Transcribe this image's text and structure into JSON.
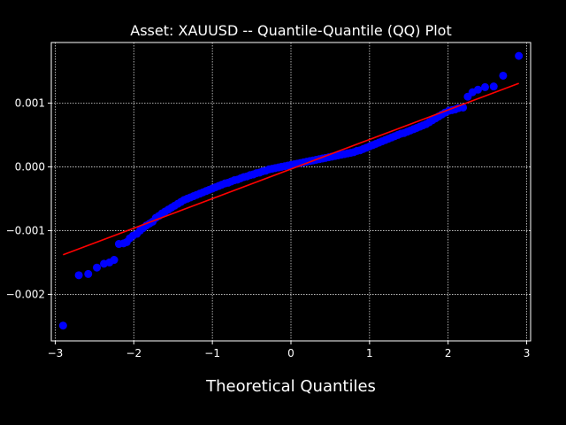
{
  "chart_data": {
    "type": "scatter",
    "title": "Asset: XAUUSD -- Quantile-Quantile (QQ) Plot",
    "xlabel": "Theoretical Quantiles",
    "ylabel": "",
    "xlim": [
      -3.05,
      3.05
    ],
    "ylim": [
      -0.00273,
      0.00195
    ],
    "xticks": [
      -3,
      -2,
      -1,
      0,
      1,
      2,
      3
    ],
    "xtick_labels": [
      "−3",
      "−2",
      "−1",
      "0",
      "1",
      "2",
      "3"
    ],
    "yticks": [
      -0.002,
      -0.001,
      0.0,
      0.001
    ],
    "ytick_labels": [
      "−0.002",
      "−0.001",
      "0.000",
      "0.001"
    ],
    "grid": true,
    "colors": {
      "background": "#000000",
      "points": "#0000ff",
      "line": "#ff0000",
      "text": "#ffffff"
    },
    "series": [
      {
        "type": "scatter",
        "color": "#0000ff",
        "x": [
          -2.9,
          -2.7,
          -2.58,
          -2.47,
          -2.38,
          -2.31,
          -2.25,
          -2.19,
          -2.13,
          -2.09,
          -2.05,
          -2.01,
          -1.96,
          -1.92,
          -1.88,
          -1.84,
          -1.8,
          -1.76,
          -1.72,
          -1.68,
          -1.64,
          -1.6,
          -1.56,
          -1.52,
          -1.48,
          -1.44,
          -1.4,
          -1.36,
          -1.32,
          -1.28,
          -1.24,
          -1.2,
          -1.16,
          -1.12,
          -1.08,
          -1.04,
          -1.0,
          -0.96,
          -0.92,
          -0.88,
          -0.84,
          -0.8,
          -0.76,
          -0.72,
          -0.68,
          -0.64,
          -0.6,
          -0.56,
          -0.52,
          -0.48,
          -0.44,
          -0.4,
          -0.36,
          -0.32,
          -0.28,
          -0.24,
          -0.2,
          -0.16,
          -0.12,
          -0.08,
          -0.04,
          0.0,
          0.04,
          0.08,
          0.12,
          0.16,
          0.2,
          0.24,
          0.28,
          0.32,
          0.36,
          0.4,
          0.44,
          0.48,
          0.52,
          0.56,
          0.6,
          0.64,
          0.68,
          0.72,
          0.76,
          0.8,
          0.84,
          0.88,
          0.92,
          0.96,
          1.0,
          1.04,
          1.08,
          1.12,
          1.16,
          1.2,
          1.24,
          1.28,
          1.32,
          1.36,
          1.4,
          1.44,
          1.48,
          1.52,
          1.56,
          1.6,
          1.64,
          1.68,
          1.72,
          1.76,
          1.8,
          1.84,
          1.88,
          1.92,
          1.96,
          2.01,
          2.05,
          2.09,
          2.13,
          2.19,
          2.25,
          2.31,
          2.38,
          2.47,
          2.58,
          2.7,
          2.9
        ],
        "y": [
          -0.00249,
          -0.0017,
          -0.00168,
          -0.00158,
          -0.00152,
          -0.0015,
          -0.00146,
          -0.00121,
          -0.0012,
          -0.00118,
          -0.00112,
          -0.00108,
          -0.00105,
          -0.001,
          -0.00096,
          -0.00092,
          -0.00089,
          -0.00086,
          -0.0008,
          -0.00077,
          -0.00073,
          -0.0007,
          -0.00067,
          -0.00064,
          -0.00061,
          -0.00058,
          -0.00055,
          -0.00052,
          -0.0005,
          -0.00048,
          -0.00046,
          -0.00044,
          -0.00042,
          -0.0004,
          -0.00038,
          -0.00036,
          -0.00034,
          -0.00032,
          -0.0003,
          -0.00028,
          -0.00026,
          -0.00025,
          -0.00023,
          -0.00021,
          -0.0002,
          -0.00018,
          -0.00016,
          -0.00015,
          -0.00013,
          -0.00012,
          -0.0001,
          -9e-05,
          -7e-05,
          -6e-05,
          -4e-05,
          -3e-05,
          -2e-05,
          -1e-05,
          0.0,
          1e-05,
          2e-05,
          3e-05,
          4e-05,
          5e-05,
          6e-05,
          7e-05,
          8e-05,
          9e-05,
          0.0001,
          0.00011,
          0.00012,
          0.00013,
          0.00014,
          0.00015,
          0.00016,
          0.00017,
          0.00018,
          0.00019,
          0.0002,
          0.00021,
          0.00022,
          0.00023,
          0.00025,
          0.00026,
          0.00028,
          0.0003,
          0.00032,
          0.00034,
          0.00036,
          0.00038,
          0.0004,
          0.00042,
          0.00044,
          0.00046,
          0.00048,
          0.0005,
          0.00052,
          0.00053,
          0.00055,
          0.00057,
          0.00059,
          0.00061,
          0.00063,
          0.00065,
          0.00067,
          0.0007,
          0.00073,
          0.00076,
          0.00079,
          0.00082,
          0.00085,
          0.00088,
          0.00089,
          0.0009,
          0.00092,
          0.00093,
          0.0011,
          0.00117,
          0.00121,
          0.00125,
          0.00126,
          0.00143,
          0.00174
        ]
      },
      {
        "type": "line",
        "color": "#ff0000",
        "x": [
          -2.9,
          2.9
        ],
        "y": [
          -0.00138,
          0.00131
        ]
      }
    ]
  }
}
